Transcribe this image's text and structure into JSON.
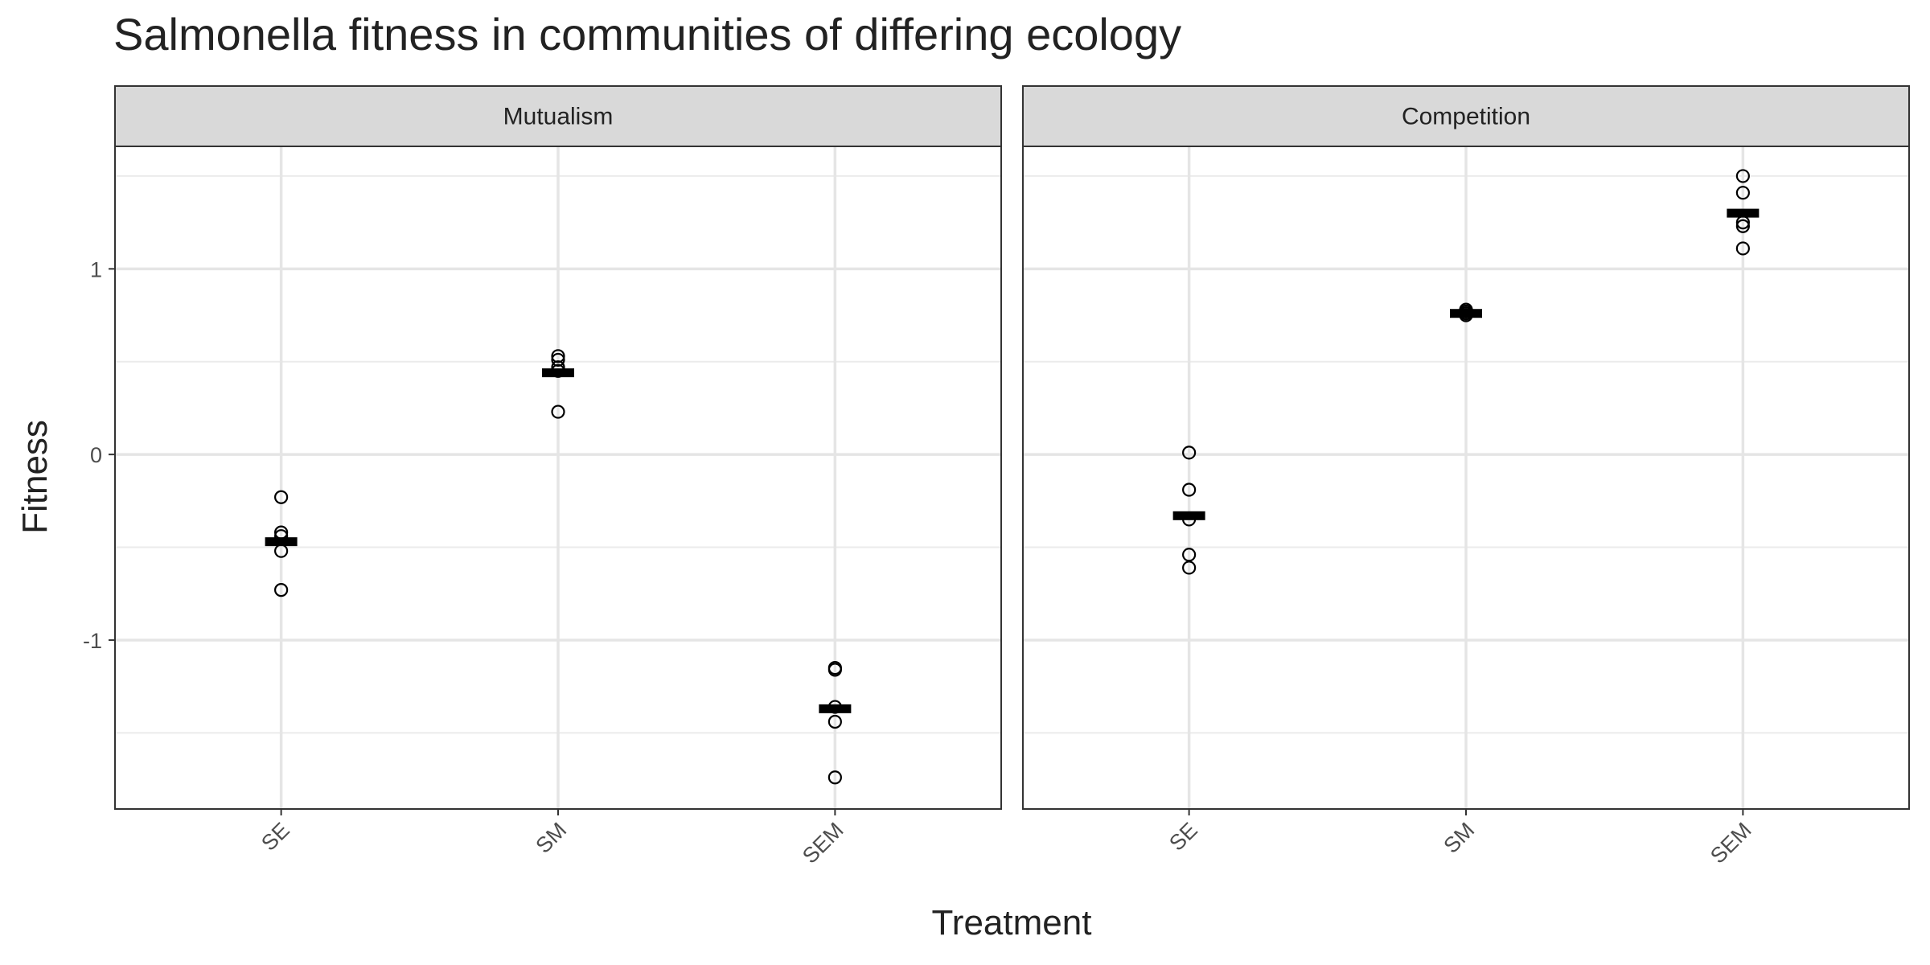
{
  "chart_data": {
    "type": "scatter",
    "title": "Salmonella fitness in communities of differing ecology",
    "x_label": "Treatment",
    "y_label": "Fitness",
    "categories": [
      "SE",
      "SM",
      "SEM"
    ],
    "ylim": [
      -1.91,
      1.66
    ],
    "yticks": [
      -1,
      0,
      1
    ],
    "grid": true,
    "point_color": "#000000",
    "mean_color": "#000000",
    "facets": [
      {
        "title": "Mutualism",
        "values": [
          [
            -0.23,
            -0.42,
            -0.44,
            -0.52,
            -0.73
          ],
          [
            0.53,
            0.51,
            0.47,
            0.45,
            0.23
          ],
          [
            -1.15,
            -1.16,
            -1.36,
            -1.44,
            -1.74
          ]
        ],
        "means": [
          -0.47,
          0.44,
          -1.37
        ]
      },
      {
        "title": "Competition",
        "values": [
          [
            0.01,
            -0.19,
            -0.35,
            -0.54,
            -0.61
          ],
          [
            0.78,
            0.77,
            0.76,
            0.75,
            0.76
          ],
          [
            1.5,
            1.41,
            1.25,
            1.23,
            1.11
          ]
        ],
        "means": [
          -0.33,
          0.76,
          1.3
        ]
      }
    ]
  }
}
